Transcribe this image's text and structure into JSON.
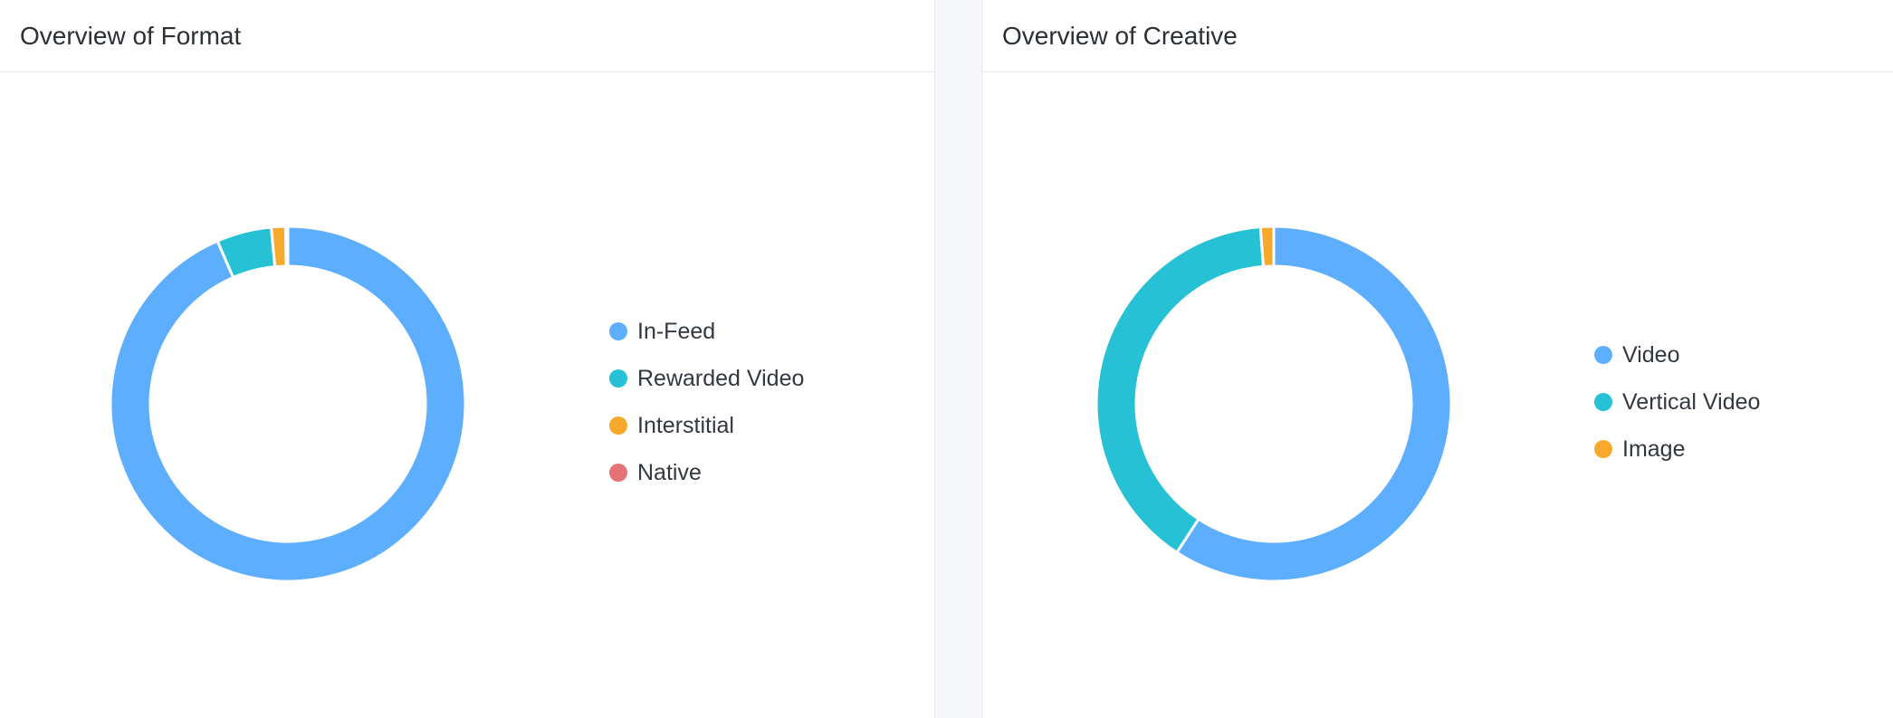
{
  "chart_data": [
    {
      "type": "pie",
      "title": "Overview of Format",
      "categories": [
        "In-Feed",
        "Rewarded Video",
        "Interstitial",
        "Native"
      ],
      "values": [
        93.5,
        5.0,
        1.3,
        0.2
      ],
      "colors": [
        "#5daeff",
        "#26c1d4",
        "#f7a92b",
        "#e37377"
      ],
      "legend": "right",
      "style": "donut"
    },
    {
      "type": "pie",
      "title": "Overview of Creative",
      "categories": [
        "Video",
        "Vertical Video",
        "Image"
      ],
      "values": [
        59.2,
        39.6,
        1.2
      ],
      "colors": [
        "#5daeff",
        "#26c1d4",
        "#f7a92b"
      ],
      "legend": "right",
      "style": "donut"
    }
  ]
}
